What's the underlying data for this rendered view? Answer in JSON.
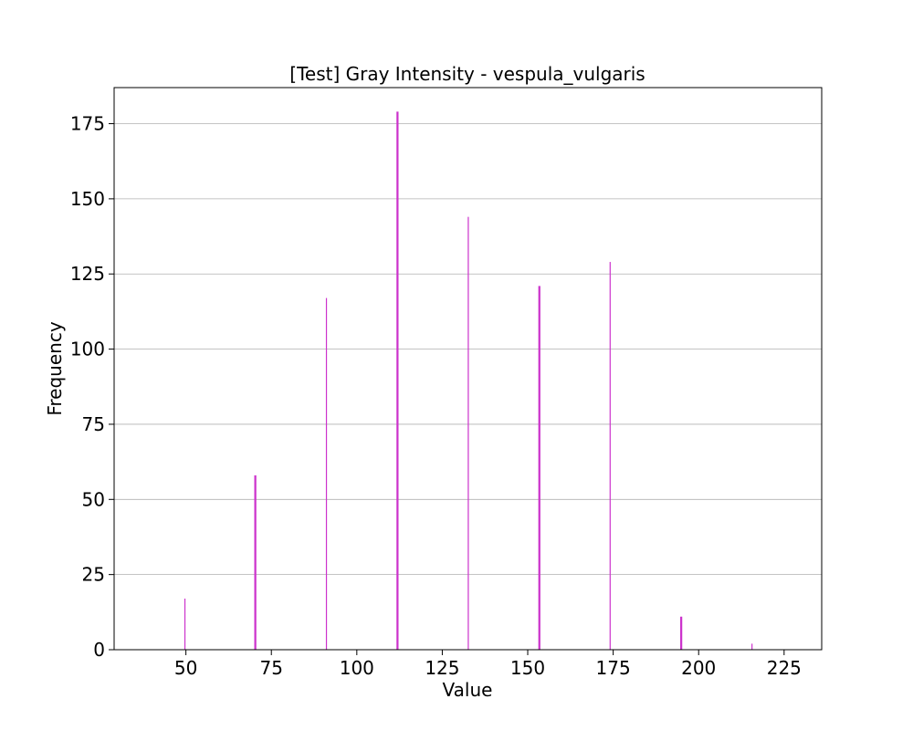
{
  "chart_data": {
    "type": "bar",
    "title": "[Test] Gray Intensity - vespula_vulgaris",
    "xlabel": "Value",
    "ylabel": "Frequency",
    "xlim": [
      29,
      236
    ],
    "ylim": [
      0,
      187
    ],
    "xticks": [
      50,
      75,
      100,
      125,
      150,
      175,
      200,
      225
    ],
    "yticks": [
      0,
      25,
      50,
      75,
      100,
      125,
      150,
      175
    ],
    "grid": "y",
    "bar_color": "#cc33cc",
    "bars": [
      {
        "x": 49.7,
        "y": 17,
        "width": 0.3
      },
      {
        "x": 70.3,
        "y": 58,
        "width": 0.6
      },
      {
        "x": 91.1,
        "y": 117,
        "width": 0.3
      },
      {
        "x": 111.9,
        "y": 179,
        "width": 0.6
      },
      {
        "x": 132.6,
        "y": 144,
        "width": 0.3
      },
      {
        "x": 153.4,
        "y": 121,
        "width": 0.6
      },
      {
        "x": 174.1,
        "y": 129,
        "width": 0.3
      },
      {
        "x": 194.9,
        "y": 11,
        "width": 0.6
      },
      {
        "x": 215.6,
        "y": 2,
        "width": 0.3
      }
    ]
  }
}
